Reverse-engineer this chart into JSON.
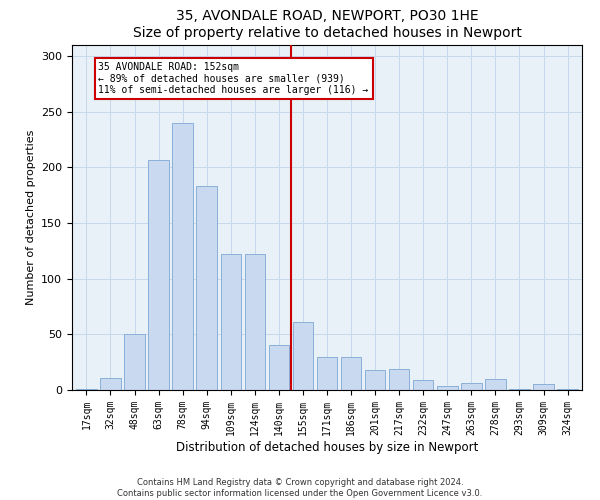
{
  "title": "35, AVONDALE ROAD, NEWPORT, PO30 1HE",
  "subtitle": "Size of property relative to detached houses in Newport",
  "xlabel": "Distribution of detached houses by size in Newport",
  "ylabel": "Number of detached properties",
  "categories": [
    "17sqm",
    "32sqm",
    "48sqm",
    "63sqm",
    "78sqm",
    "94sqm",
    "109sqm",
    "124sqm",
    "140sqm",
    "155sqm",
    "171sqm",
    "186sqm",
    "201sqm",
    "217sqm",
    "232sqm",
    "247sqm",
    "263sqm",
    "278sqm",
    "293sqm",
    "309sqm",
    "324sqm"
  ],
  "bar_heights": [
    1,
    11,
    50,
    207,
    240,
    183,
    122,
    122,
    40,
    61,
    30,
    30,
    18,
    19,
    9,
    4,
    6,
    10,
    1,
    5,
    1
  ],
  "bar_color": "#c9daf0",
  "bar_edge_color": "#8ab0d8",
  "grid_color": "#c8d8ec",
  "background_color": "#e8f0f8",
  "vline_color": "#cc0000",
  "vline_x_index": 9,
  "annotation_text_line1": "35 AVONDALE ROAD: 152sqm",
  "annotation_text_line2": "← 89% of detached houses are smaller (939)",
  "annotation_text_line3": "11% of semi-detached houses are larger (116) →",
  "annotation_box_color": "#cc0000",
  "ylim": [
    0,
    310
  ],
  "yticks": [
    0,
    50,
    100,
    150,
    200,
    250,
    300
  ],
  "footnote1": "Contains HM Land Registry data © Crown copyright and database right 2024.",
  "footnote2": "Contains public sector information licensed under the Open Government Licence v3.0."
}
